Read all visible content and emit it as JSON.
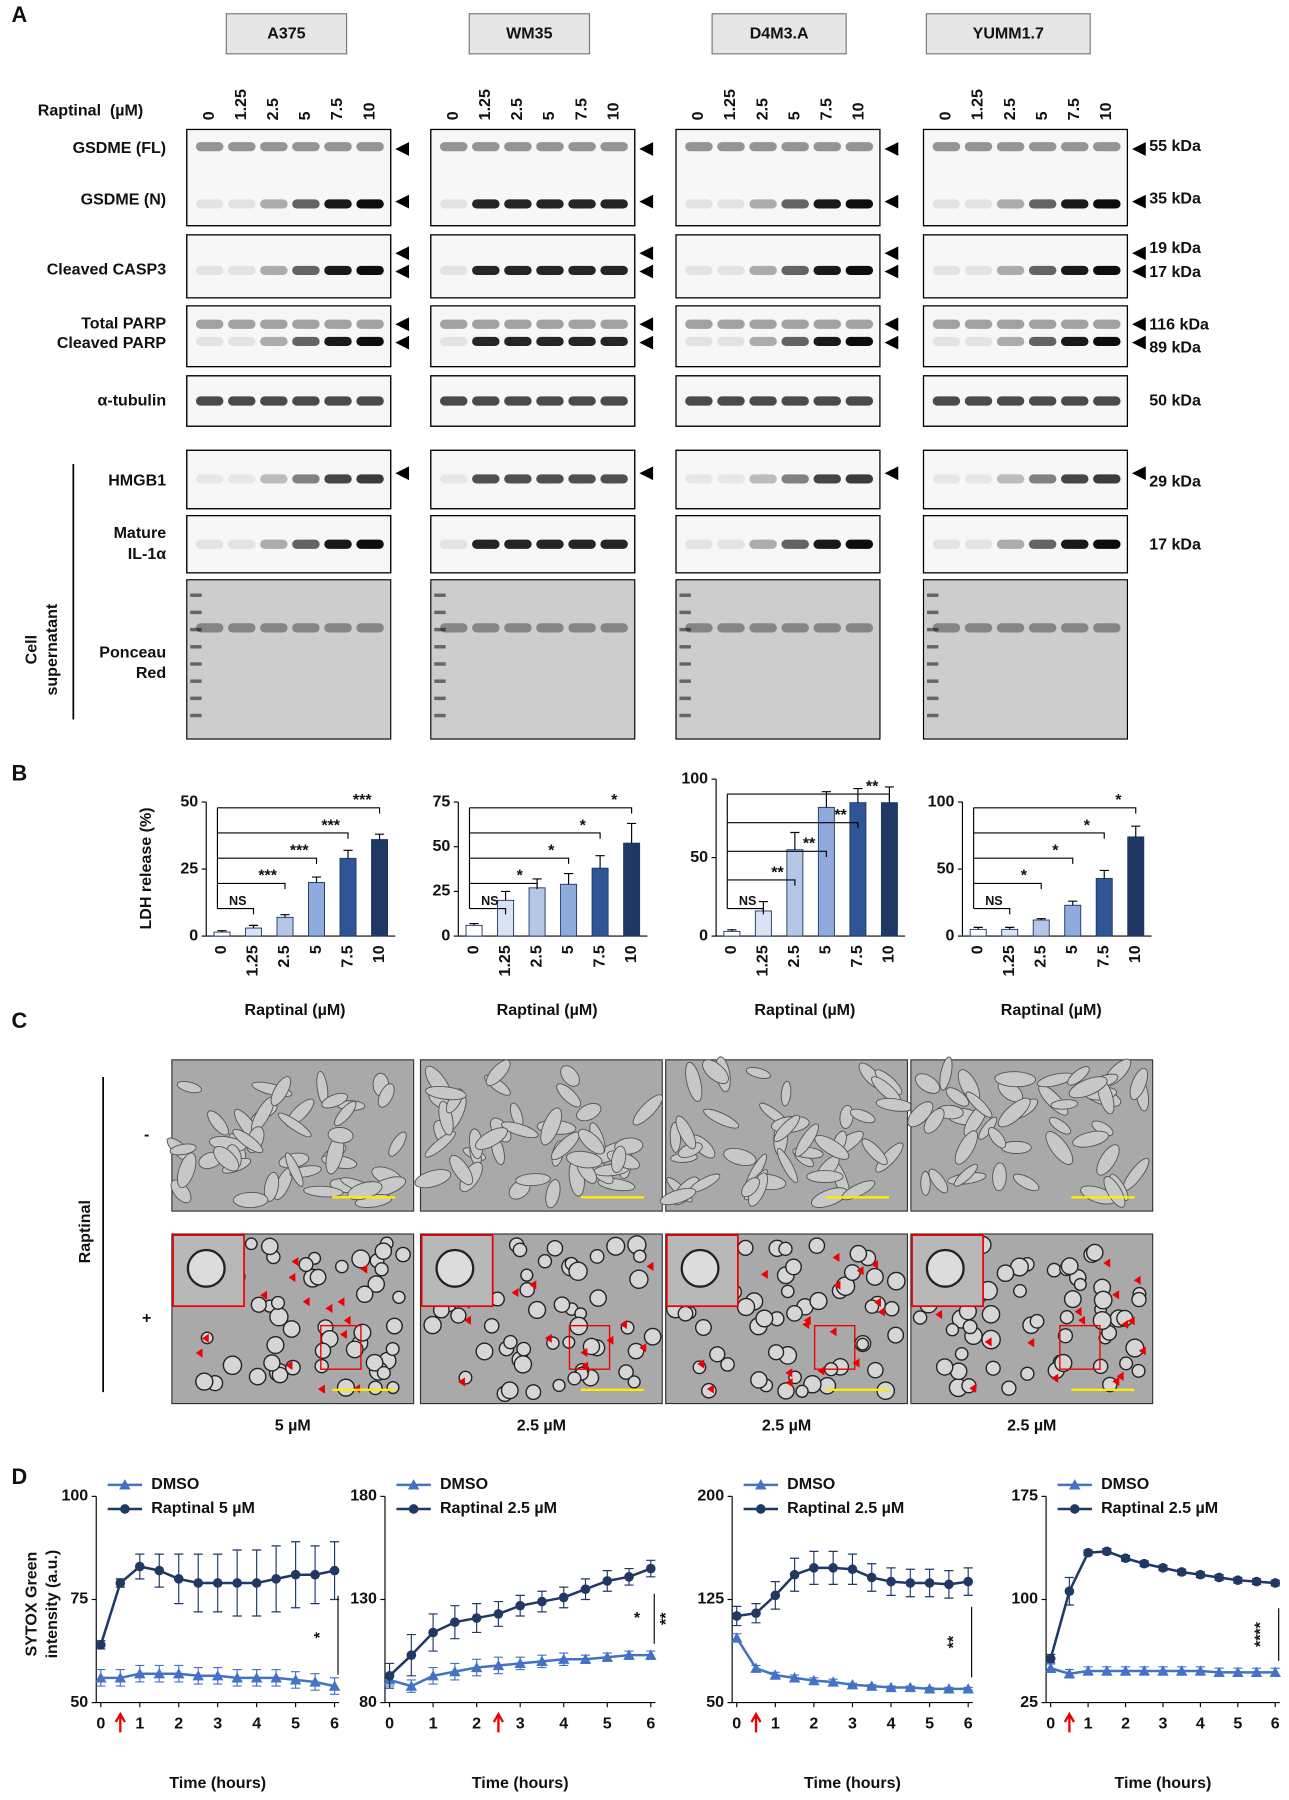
{
  "panel_labels": {
    "a": "A",
    "b": "B",
    "c": "C",
    "d": "D"
  },
  "blots": {
    "cell_lines": [
      "A375",
      "WM35",
      "D4M3.A",
      "YUMM1.7"
    ],
    "dose_label": "Raptinal  (µM)",
    "doses": [
      "0",
      "1.25",
      "2.5",
      "5",
      "7.5",
      "10"
    ],
    "row_labels": [
      [
        "GSDME (FL)"
      ],
      [
        "GSDME (N)"
      ],
      [
        "Cleaved CASP3"
      ],
      [
        "Total PARP"
      ],
      [
        "Cleaved PARP"
      ],
      [
        "α-tubulin"
      ],
      [
        "HMGB1"
      ],
      [
        "Mature",
        "IL-1α"
      ],
      [
        "Ponceau",
        "Red"
      ]
    ],
    "sizes": [
      "55 kDa",
      "35 kDa",
      "19 kDa",
      "17 kDa",
      "116 kDa",
      "89 kDa",
      "50 kDa",
      "29 kDa",
      "17 kDa"
    ],
    "supernatant_label": [
      "Cell",
      "supernatant"
    ]
  },
  "chart_data": [
    {
      "type": "bar",
      "ylabel": "LDH release (%)",
      "xlabel": "Raptinal (µM)",
      "categories": [
        "0",
        "1.25",
        "2.5",
        "5",
        "7.5",
        "10"
      ],
      "values": [
        1.5,
        3,
        7,
        20,
        29,
        36
      ],
      "errors": [
        0.5,
        1,
        1,
        2,
        3,
        2
      ],
      "colors": [
        "#ffffff",
        "#dae3f3",
        "#b4c7e7",
        "#8faadc",
        "#2f5597",
        "#1f3864"
      ],
      "ylim": [
        0,
        50
      ],
      "yticks": [
        0,
        25,
        50
      ],
      "significance": [
        null,
        "NS",
        "***",
        "***",
        "***",
        "***"
      ]
    },
    {
      "type": "bar",
      "xlabel": "Raptinal (µM)",
      "categories": [
        "0",
        "1.25",
        "2.5",
        "5",
        "7.5",
        "10"
      ],
      "values": [
        6,
        20,
        27,
        29,
        38,
        52
      ],
      "errors": [
        1,
        5,
        5,
        6,
        7,
        11
      ],
      "colors": [
        "#ffffff",
        "#dae3f3",
        "#b4c7e7",
        "#8faadc",
        "#2f5597",
        "#1f3864"
      ],
      "ylim": [
        0,
        75
      ],
      "yticks": [
        0,
        25,
        50,
        75
      ],
      "significance": [
        null,
        "NS",
        "*",
        "*",
        "*",
        "*"
      ]
    },
    {
      "type": "bar",
      "xlabel": "Raptinal (µM)",
      "categories": [
        "0",
        "1.25",
        "2.5",
        "5",
        "7.5",
        "10"
      ],
      "values": [
        3,
        16,
        55,
        82,
        85,
        85
      ],
      "errors": [
        1,
        6,
        11,
        10,
        9,
        10
      ],
      "colors": [
        "#ffffff",
        "#dae3f3",
        "#b4c7e7",
        "#8faadc",
        "#2f5597",
        "#1f3864"
      ],
      "ylim": [
        0,
        100
      ],
      "yticks": [
        0,
        50,
        100
      ],
      "significance": [
        null,
        "NS",
        "**",
        "**",
        "**",
        "**"
      ]
    },
    {
      "type": "bar",
      "xlabel": "Raptinal (µM)",
      "categories": [
        "0",
        "1.25",
        "2.5",
        "5",
        "7.5",
        "10"
      ],
      "values": [
        5,
        5,
        12,
        23,
        43,
        74
      ],
      "errors": [
        1.5,
        1.5,
        1,
        3,
        6,
        8
      ],
      "colors": [
        "#ffffff",
        "#dae3f3",
        "#b4c7e7",
        "#8faadc",
        "#2f5597",
        "#1f3864"
      ],
      "ylim": [
        0,
        100
      ],
      "yticks": [
        0,
        50,
        100
      ],
      "significance": [
        null,
        "NS",
        "*",
        "*",
        "*",
        "*"
      ]
    },
    {
      "type": "line",
      "ylabel": [
        "SYTOX Green",
        "intensity (a.u.)"
      ],
      "xlabel": "Time (hours)",
      "x": [
        0,
        0.5,
        1,
        1.5,
        2,
        2.5,
        3,
        3.5,
        4,
        4.5,
        5,
        5.5,
        6
      ],
      "series": [
        {
          "name": "DMSO",
          "color": "#4472c4",
          "marker": "triangle",
          "values": [
            56,
            56,
            57,
            57,
            57,
            56.5,
            56.5,
            56,
            56,
            56,
            55.5,
            55,
            54
          ],
          "errors": [
            2,
            2,
            2,
            2,
            2,
            2,
            2,
            2,
            2,
            2,
            2,
            2,
            2
          ]
        },
        {
          "name": "Raptinal 5 µM",
          "color": "#1f3864",
          "marker": "circle",
          "values": [
            64,
            79,
            83,
            82,
            80,
            79,
            79,
            79,
            79,
            80,
            81,
            81,
            82
          ],
          "errors": [
            1,
            1,
            3,
            4,
            6,
            7,
            7,
            8,
            8,
            8,
            8,
            7,
            7
          ]
        }
      ],
      "xlim": [
        0,
        6
      ],
      "xticks": [
        0,
        1,
        2,
        3,
        4,
        5,
        6
      ],
      "ylim": [
        50,
        100
      ],
      "yticks": [
        50,
        75,
        100
      ],
      "significance": [
        "*"
      ],
      "treatment_x": 0.5
    },
    {
      "type": "line",
      "xlabel": "Time (hours)",
      "x": [
        0,
        0.5,
        1,
        1.5,
        2,
        2.5,
        3,
        3.5,
        4,
        4.5,
        5,
        5.5,
        6
      ],
      "series": [
        {
          "name": "DMSO",
          "color": "#4472c4",
          "marker": "triangle",
          "values": [
            91,
            88,
            93,
            95,
            97,
            98,
            99,
            100,
            101,
            101,
            102,
            103,
            103
          ],
          "errors": [
            3,
            3,
            4,
            4,
            4,
            4,
            3,
            3,
            3,
            2,
            2,
            2,
            2
          ]
        },
        {
          "name": "Raptinal 2.5 µM",
          "color": "#1f3864",
          "marker": "circle",
          "values": [
            93,
            103,
            114,
            119,
            121,
            123,
            127,
            129,
            131,
            135,
            139,
            141,
            145
          ],
          "errors": [
            6,
            10,
            9,
            8,
            7,
            6,
            5,
            5,
            5,
            5,
            5,
            4,
            4
          ]
        }
      ],
      "xlim": [
        0,
        6
      ],
      "xticks": [
        0,
        1,
        2,
        3,
        4,
        5,
        6
      ],
      "ylim": [
        80,
        180
      ],
      "yticks": [
        80,
        130,
        180
      ],
      "significance": [
        "*",
        "**"
      ],
      "treatment_x": 2.5
    },
    {
      "type": "line",
      "xlabel": "Time (hours)",
      "x": [
        0,
        0.5,
        1,
        1.5,
        2,
        2.5,
        3,
        3.5,
        4,
        4.5,
        5,
        5.5,
        6
      ],
      "series": [
        {
          "name": "DMSO",
          "color": "#4472c4",
          "marker": "triangle",
          "values": [
            97,
            75,
            70,
            68,
            66,
            65,
            63,
            62,
            61,
            61,
            60,
            60,
            60
          ],
          "errors": [
            3,
            2,
            2,
            2,
            2,
            2,
            1,
            1,
            1,
            1,
            1,
            1,
            1
          ]
        },
        {
          "name": "Raptinal 2.5 µM",
          "color": "#1f3864",
          "marker": "circle",
          "values": [
            113,
            115,
            128,
            143,
            148,
            148,
            147,
            141,
            138,
            137,
            137,
            136,
            138
          ],
          "errors": [
            7,
            7,
            10,
            12,
            12,
            12,
            11,
            10,
            10,
            10,
            10,
            10,
            10
          ]
        }
      ],
      "xlim": [
        0,
        6
      ],
      "xticks": [
        0,
        1,
        2,
        3,
        4,
        5,
        6
      ],
      "ylim": [
        50,
        200
      ],
      "yticks": [
        50,
        125,
        200
      ],
      "significance": [
        "**"
      ],
      "treatment_x": 0.5
    },
    {
      "type": "line",
      "xlabel": "Time (hours)",
      "x": [
        0,
        0.5,
        1,
        1.5,
        2,
        2.5,
        3,
        3.5,
        4,
        4.5,
        5,
        5.5,
        6
      ],
      "series": [
        {
          "name": "DMSO",
          "color": "#4472c4",
          "marker": "triangle",
          "values": [
            50,
            46,
            48,
            48,
            48,
            48,
            48,
            48,
            48,
            47,
            47,
            47,
            47
          ],
          "errors": [
            3,
            3,
            3,
            3,
            3,
            3,
            3,
            3,
            3,
            3,
            3,
            3,
            3
          ]
        },
        {
          "name": "Raptinal 2.5 µM",
          "color": "#1f3864",
          "marker": "circle",
          "values": [
            57,
            106,
            134,
            135,
            130,
            126,
            123,
            120,
            118,
            116,
            114,
            113,
            112
          ],
          "errors": [
            3,
            10,
            2,
            2,
            2,
            2,
            2,
            2,
            2,
            2,
            2,
            2,
            2
          ]
        }
      ],
      "xlim": [
        0,
        6
      ],
      "xticks": [
        0,
        1,
        2,
        3,
        4,
        5,
        6
      ],
      "ylim": [
        25,
        175
      ],
      "yticks": [
        25,
        100,
        175
      ],
      "significance": [
        "****"
      ],
      "treatment_x": 0.5
    }
  ],
  "micrographs": {
    "treatment_label": "Raptinal",
    "rows": [
      "-",
      "+"
    ],
    "concentrations": [
      "5 µM",
      "2.5 µM",
      "2.5 µM",
      "2.5 µM"
    ]
  }
}
